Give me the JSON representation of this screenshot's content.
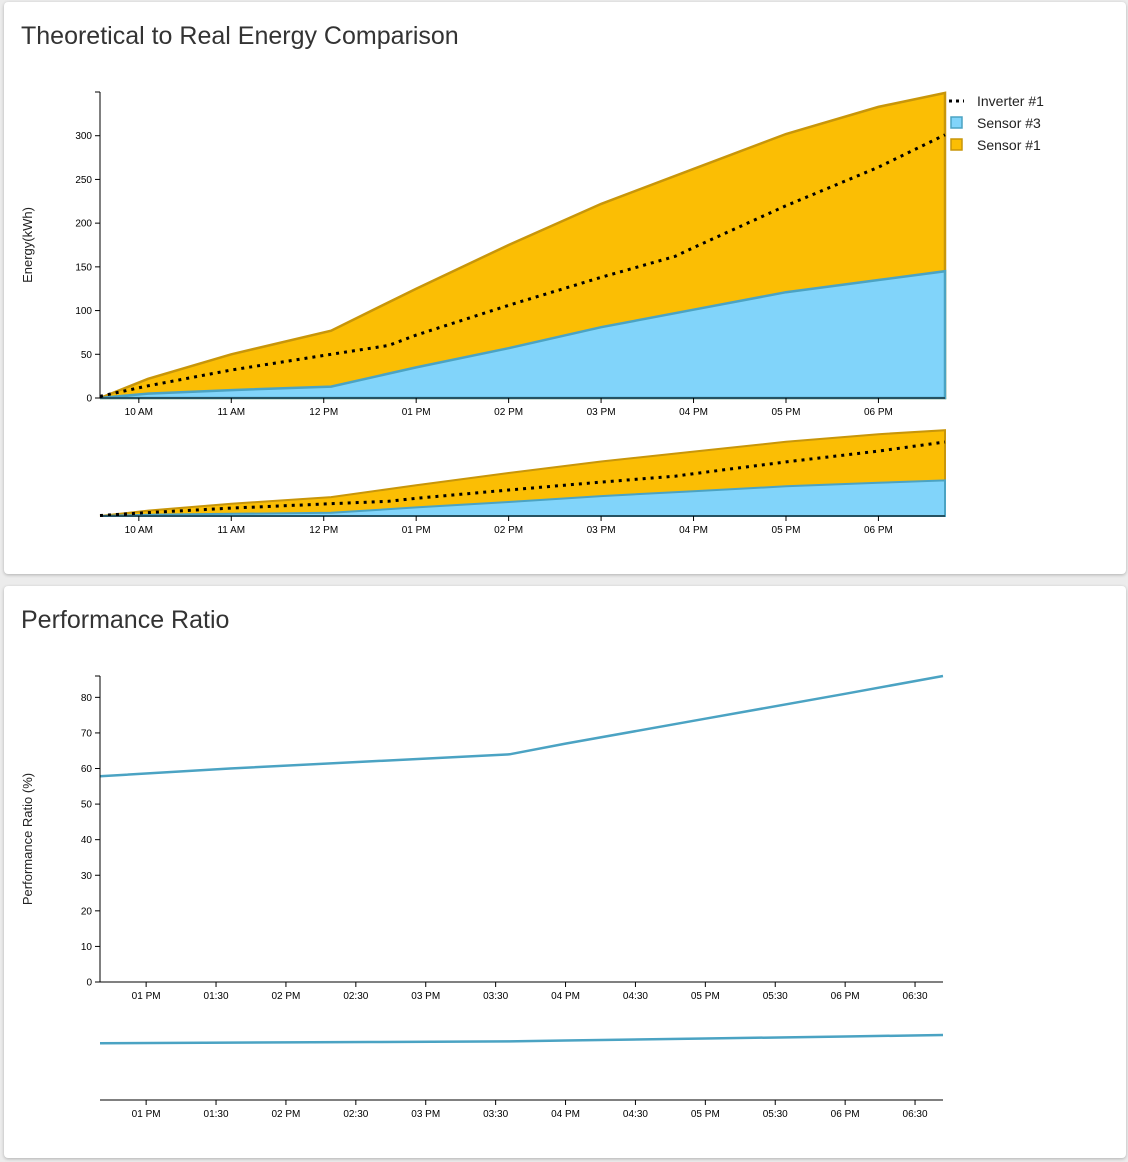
{
  "energy_card": {
    "title": "Theoretical to Real Energy Comparison"
  },
  "pr_card": {
    "title": "Performance Ratio"
  },
  "colors": {
    "sensor1_fill": "#fbbe04",
    "sensor1_stroke": "#c8960a",
    "sensor3_fill": "#81d4fa",
    "sensor3_stroke": "#4ba3c3",
    "inverter_line": "#000000",
    "pr_line": "#4ba3c3"
  },
  "chart_data": [
    {
      "type": "area",
      "title": "Theoretical to Real Energy Comparison",
      "ylabel": "Energy(kWh)",
      "xlabel": "",
      "ylim": [
        0,
        350
      ],
      "yticks": [
        0,
        50,
        100,
        150,
        200,
        250,
        300
      ],
      "xticks": [
        {
          "label": "10 AM",
          "x": 10
        },
        {
          "label": "11 AM",
          "x": 11
        },
        {
          "label": "12 PM",
          "x": 12
        },
        {
          "label": "01 PM",
          "x": 13
        },
        {
          "label": "02 PM",
          "x": 14
        },
        {
          "label": "03 PM",
          "x": 15
        },
        {
          "label": "04 PM",
          "x": 16
        },
        {
          "label": "05 PM",
          "x": 17
        },
        {
          "label": "06 PM",
          "x": 18
        }
      ],
      "xlim": [
        9.58,
        18.72
      ],
      "legend_position": "top-right",
      "series": [
        {
          "name": "Sensor #1",
          "kind": "area",
          "points": [
            [
              9.58,
              0
            ],
            [
              10.1,
              22
            ],
            [
              11,
              50
            ],
            [
              12.08,
              77
            ],
            [
              13,
              125
            ],
            [
              14,
              175
            ],
            [
              15,
              222
            ],
            [
              16,
              262
            ],
            [
              17,
              302
            ],
            [
              18,
              333
            ],
            [
              18.72,
              349
            ]
          ]
        },
        {
          "name": "Sensor #3",
          "kind": "area",
          "points": [
            [
              9.58,
              0
            ],
            [
              10.1,
              5
            ],
            [
              11,
              9
            ],
            [
              12.08,
              13
            ],
            [
              13,
              35
            ],
            [
              14,
              57
            ],
            [
              15,
              81
            ],
            [
              16,
              101
            ],
            [
              17,
              121
            ],
            [
              18,
              135
            ],
            [
              18.72,
              145
            ]
          ]
        },
        {
          "name": "Inverter #1",
          "kind": "dotted-line",
          "points": [
            [
              9.58,
              2
            ],
            [
              10.1,
              14
            ],
            [
              11,
              32
            ],
            [
              12.08,
              50
            ],
            [
              12.7,
              60
            ],
            [
              13,
              72
            ],
            [
              14,
              106
            ],
            [
              15,
              138
            ],
            [
              15.8,
              162
            ],
            [
              16,
              172
            ],
            [
              17,
              220
            ],
            [
              18,
              264
            ],
            [
              18.72,
              301
            ]
          ]
        }
      ],
      "overview": {
        "type": "area",
        "description_of_brush": "context/overview chart of the same three series",
        "xlim": [
          9.58,
          18.72
        ]
      }
    },
    {
      "type": "line",
      "title": "Performance Ratio",
      "ylabel": "Performance Ratio (%)",
      "xlabel": "",
      "ylim": [
        0,
        86
      ],
      "yticks": [
        0,
        10,
        20,
        30,
        40,
        50,
        60,
        70,
        80
      ],
      "xticks": [
        {
          "label": "01 PM",
          "x": 13.0
        },
        {
          "label": "01:30",
          "x": 13.5
        },
        {
          "label": "02 PM",
          "x": 14.0
        },
        {
          "label": "02:30",
          "x": 14.5
        },
        {
          "label": "03 PM",
          "x": 15.0
        },
        {
          "label": "03:30",
          "x": 15.5
        },
        {
          "label": "04 PM",
          "x": 16.0
        },
        {
          "label": "04:30",
          "x": 16.5
        },
        {
          "label": "05 PM",
          "x": 17.0
        },
        {
          "label": "05:30",
          "x": 17.5
        },
        {
          "label": "06 PM",
          "x": 18.0
        },
        {
          "label": "06:30",
          "x": 18.5
        }
      ],
      "xlim": [
        12.67,
        18.7
      ],
      "series": [
        {
          "kind": "line",
          "points": [
            [
              12.67,
              57.8
            ],
            [
              13.6,
              60.0
            ],
            [
              14.6,
              62.0
            ],
            [
              15.6,
              64.0
            ],
            [
              16.0,
              67.0
            ],
            [
              17.0,
              74.0
            ],
            [
              18.0,
              81.0
            ],
            [
              18.7,
              86.0
            ]
          ]
        }
      ],
      "overview": {
        "type": "line",
        "description_of_brush": "context/overview chart of the same series",
        "xlim": [
          12.67,
          18.7
        ]
      }
    }
  ]
}
